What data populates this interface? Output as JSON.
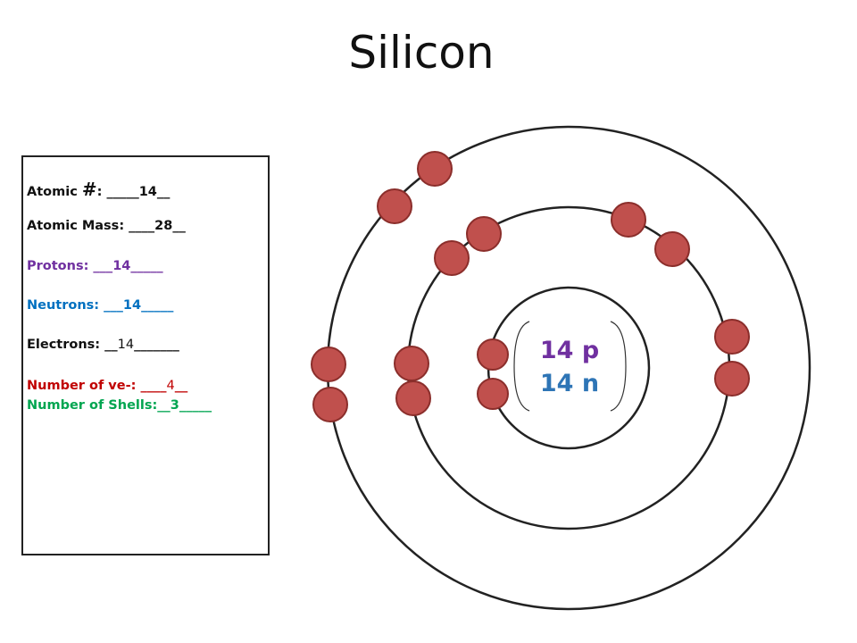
{
  "title": "Silicon",
  "info": {
    "atomic_number": {
      "label": "Atomic ",
      "hash": "#",
      "after_hash": ": _____",
      "value": "14",
      "suffix": "__",
      "color": "#111111"
    },
    "atomic_mass": {
      "label": "Atomic Mass: ____",
      "value": "28",
      "suffix": "__",
      "color": "#111111"
    },
    "protons": {
      "label": "Protons: ___",
      "value": "14",
      "suffix": "_____",
      "color": "#7030a0"
    },
    "neutrons": {
      "label": "Neutrons: ___",
      "value": "14",
      "suffix": "_____",
      "color": "#0070c0"
    },
    "electrons": {
      "label": "Electrons: __",
      "value": "14",
      "suffix": "_______",
      "color": "#111111"
    },
    "valence": {
      "label": "Number of ve-: ____",
      "value": "4",
      "suffix": "__",
      "color": "#c00000"
    },
    "shells": {
      "label": "Number of Shells:__",
      "value": "3",
      "suffix": "_____",
      "color": "#00a550"
    }
  },
  "nucleus": {
    "protons_label": "14 p",
    "neutrons_label": "14 n",
    "protons_color": "#7030a0",
    "neutrons_color": "#2e75b6"
  },
  "shells": [
    {
      "name": "shell-1",
      "electrons": 2
    },
    {
      "name": "shell-2",
      "electrons": 8
    },
    {
      "name": "shell-3",
      "electrons": 4
    }
  ],
  "electron_color": "#c0504d"
}
